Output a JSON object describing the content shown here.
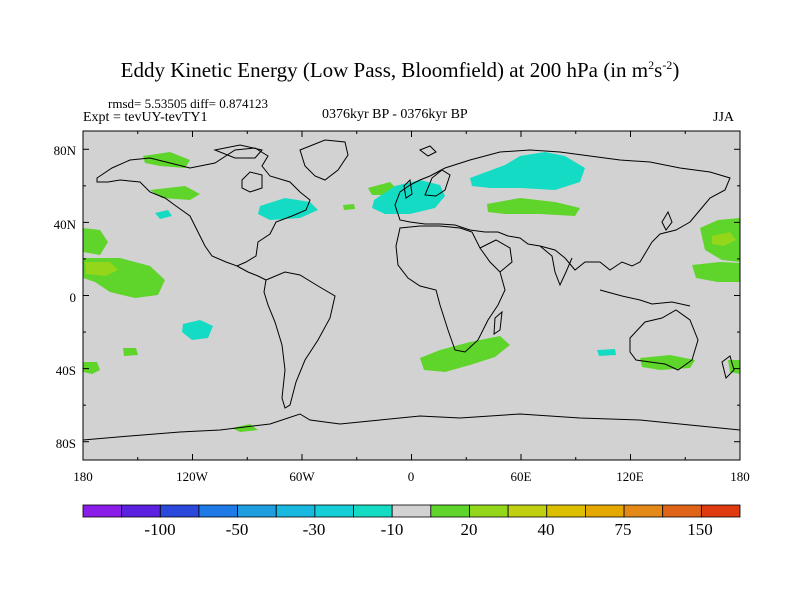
{
  "title": {
    "main": "Eddy Kinetic Energy (Low Pass, Bloomfield) at 200 hPa (in m",
    "sup1": "2",
    "mid": "s",
    "sup2": "-2",
    "end": ")"
  },
  "stats": {
    "rmsd_diff": "rmsd= 5.53505 diff= 0.874123",
    "expt": "Expt = tevUY-tevTY1",
    "period": "0376kyr BP - 0376kyr BP",
    "season": "JJA"
  },
  "axes": {
    "lat_labels": [
      "80N",
      "40N",
      "0",
      "40S",
      "80S"
    ],
    "lon_labels": [
      "180",
      "120W",
      "60W",
      "0",
      "60E",
      "120E",
      "180"
    ]
  },
  "colorbar": {
    "colors": [
      "#8a1ee8",
      "#5a22e0",
      "#2a48dc",
      "#1d7ae6",
      "#1d9ee0",
      "#18b8e0",
      "#16ced8",
      "#14dcc4",
      "#d2d2d2",
      "#5fd42a",
      "#94d61a",
      "#c0d010",
      "#dcc000",
      "#e4a800",
      "#e48818",
      "#e06418",
      "#e03a10"
    ],
    "labels": [
      "-100",
      "-50",
      "-30",
      "-10",
      "20",
      "40",
      "75",
      "150"
    ]
  },
  "map_colors": {
    "background": "#d2d2d2",
    "positive": "#5fd42a",
    "positive_strong": "#94d61a",
    "negative": "#14dcc4"
  }
}
